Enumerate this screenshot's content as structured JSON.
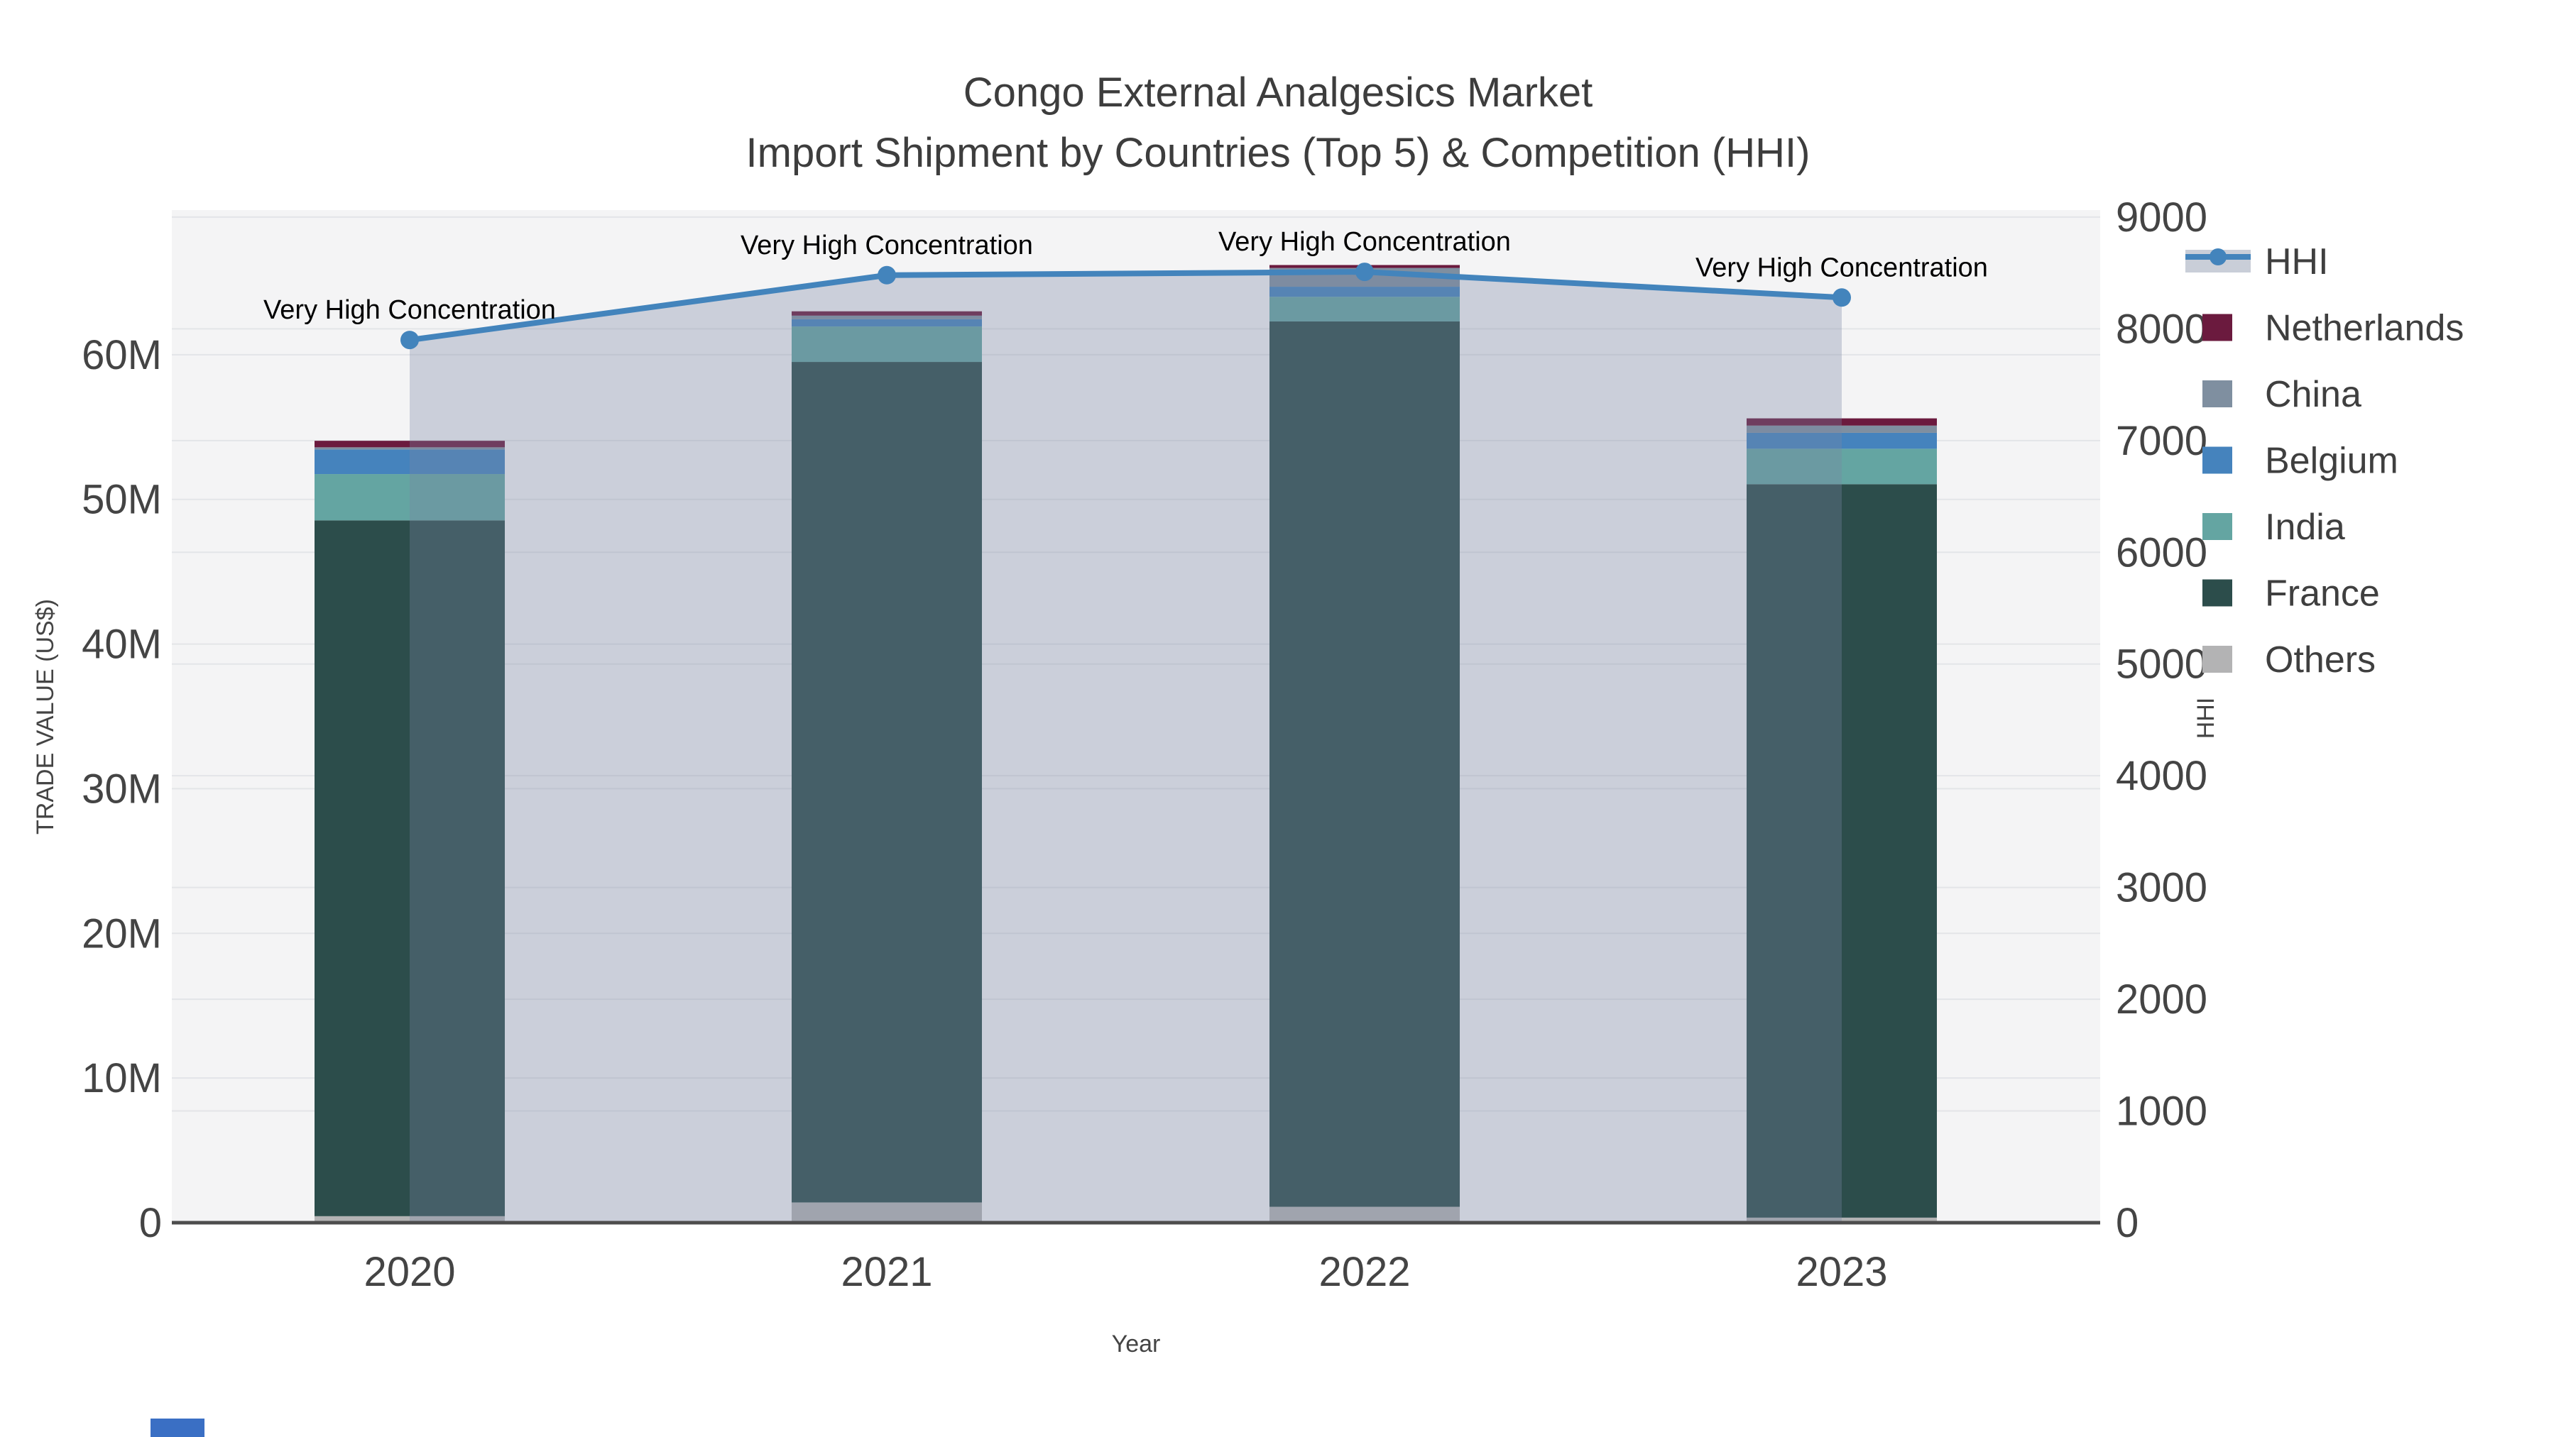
{
  "chart_data": {
    "type": "bar",
    "subtype": "stacked-bars-with-area-line-dual-axis",
    "title": "Congo External Analgesics Market",
    "subtitle": "Import Shipment by Countries (Top 5) & Competition (HHI)",
    "categories": [
      "2020",
      "2021",
      "2022",
      "2023"
    ],
    "series": [
      {
        "name": "Others",
        "values": [
          0.45,
          1.4,
          1.1,
          0.35
        ],
        "color": "#b3b3b4"
      },
      {
        "name": "France",
        "values": [
          48.1,
          58.1,
          61.2,
          50.7
        ],
        "color": "#2c4d4b"
      },
      {
        "name": "India",
        "values": [
          3.2,
          2.45,
          1.7,
          2.45
        ],
        "color": "#64a5a2"
      },
      {
        "name": "Belgium",
        "values": [
          1.7,
          0.5,
          0.7,
          1.1
        ],
        "color": "#4583bd"
      },
      {
        "name": "China",
        "values": [
          0.15,
          0.25,
          1.3,
          0.5
        ],
        "color": "#7f8fa0"
      },
      {
        "name": "Netherlands",
        "values": [
          0.45,
          0.3,
          0.2,
          0.5
        ],
        "color": "#6b1a3e"
      }
    ],
    "bar_totals_m": [
      54.05,
      63.0,
      66.2,
      55.6
    ],
    "bar_value_unit": "US$ millions",
    "line_series": {
      "name": "HHI",
      "values": [
        7900,
        8480,
        8510,
        8280
      ],
      "color": "#4384bc",
      "area_fill": "rgba(120,135,165,0.33)",
      "axis": "right"
    },
    "annotations": [
      {
        "text": "Very High Concentration",
        "category": "2020"
      },
      {
        "text": "Very High Concentration",
        "category": "2021"
      },
      {
        "text": "Very High Concentration",
        "category": "2022"
      },
      {
        "text": "Very High Concentration",
        "category": "2023"
      }
    ],
    "xlabel": "Year",
    "ylabel_left": "TRADE VALUE (US$)",
    "ylabel_right": "HHI",
    "ylim_left_m": [
      0,
      70
    ],
    "ylim_right": [
      0,
      9063
    ],
    "yticks_left": [
      "0",
      "10M",
      "20M",
      "30M",
      "40M",
      "50M",
      "60M"
    ],
    "yticks_right": [
      "0",
      "1000",
      "2000",
      "3000",
      "4000",
      "5000",
      "6000",
      "7000",
      "8000",
      "9000"
    ],
    "grid": true,
    "legend_position": "top-right",
    "legend_order": [
      "HHI",
      "Netherlands",
      "China",
      "Belgium",
      "India",
      "France",
      "Others"
    ]
  },
  "colors": {
    "plot_bg": "#f4f4f5",
    "page_bg": "#ffffff",
    "gridline": "#e3e5e8",
    "axis_line": "#4d4d4d",
    "text": "#444444",
    "annotation": "#000000",
    "hhi_line": "#4384bc",
    "corner_fragment_blue": "#3a6fc4"
  }
}
